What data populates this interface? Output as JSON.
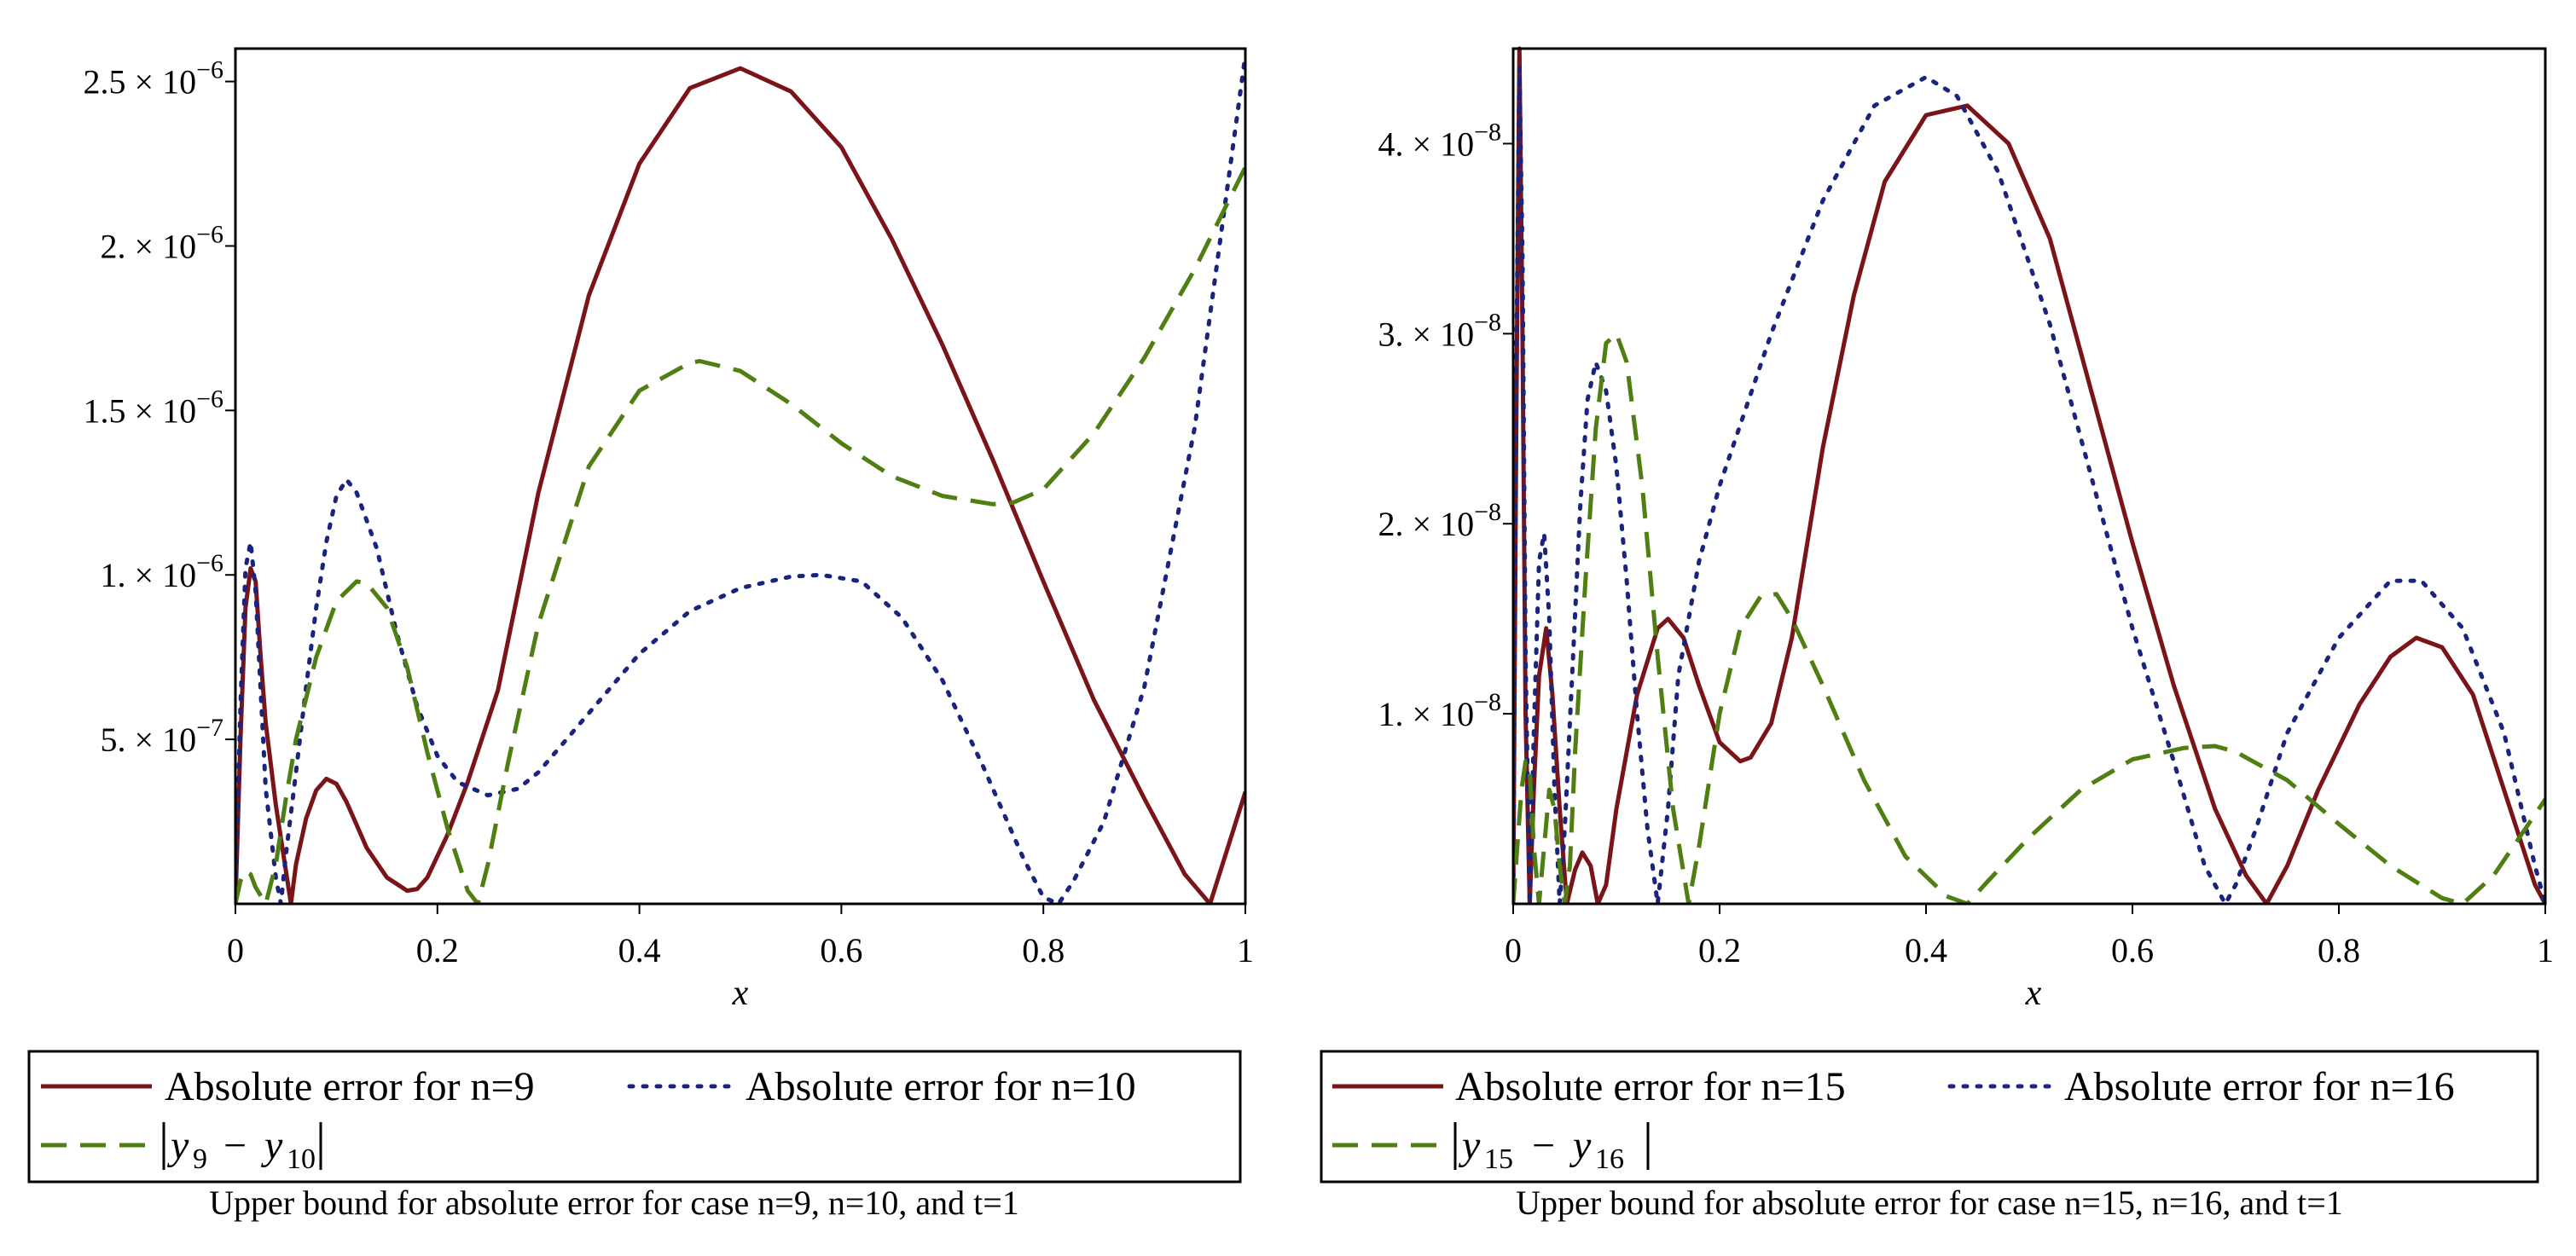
{
  "chart_data": [
    {
      "type": "line",
      "title": "",
      "xlabel": "x",
      "ylabel": "",
      "xlim": [
        0,
        1
      ],
      "ylim": [
        0,
        2.6e-06
      ],
      "x_ticks": [
        0,
        0.2,
        0.4,
        0.6,
        0.8,
        1
      ],
      "x_tick_labels": [
        "0",
        "0.2",
        "0.4",
        "0.6",
        "0.8",
        "1"
      ],
      "y_ticks": [
        5e-07,
        1e-06,
        1.5e-06,
        2e-06,
        2.5e-06
      ],
      "y_tick_mantissas": [
        "5.",
        "1.",
        "1.5",
        "2.",
        "2.5"
      ],
      "y_tick_exponents": [
        "-7",
        "-6",
        "-6",
        "-6",
        "-6"
      ],
      "series": [
        {
          "name": "Absolute error for n=9",
          "style": "solid",
          "color": "#7a1418",
          "x": [
            0,
            0.005,
            0.01,
            0.015,
            0.02,
            0.025,
            0.03,
            0.04,
            0.05,
            0.055,
            0.06,
            0.07,
            0.08,
            0.09,
            0.1,
            0.11,
            0.12,
            0.13,
            0.15,
            0.17,
            0.18,
            0.19,
            0.21,
            0.23,
            0.26,
            0.3,
            0.35,
            0.4,
            0.45,
            0.5,
            0.55,
            0.6,
            0.65,
            0.7,
            0.75,
            0.8,
            0.85,
            0.9,
            0.94,
            0.965,
            1
          ],
          "y": [
            0,
            5e-07,
            9e-07,
            1.02e-06,
            9.8e-07,
            7.5e-07,
            5.5e-07,
            3e-07,
            1e-07,
            0,
            1.2e-07,
            2.6e-07,
            3.45e-07,
            3.8e-07,
            3.65e-07,
            3.1e-07,
            2.4e-07,
            1.7e-07,
            8e-08,
            4e-08,
            4.5e-08,
            8e-08,
            2.1e-07,
            3.7e-07,
            6.5e-07,
            1.25e-06,
            1.85e-06,
            2.25e-06,
            2.48e-06,
            2.54e-06,
            2.47e-06,
            2.3e-06,
            2.02e-06,
            1.7e-06,
            1.35e-06,
            9.8e-07,
            6.2e-07,
            3.2e-07,
            9e-08,
            0,
            3.4e-07
          ]
        },
        {
          "name": "Absolute error for n=10",
          "style": "dotted",
          "color": "#1a237e",
          "x": [
            0,
            0.005,
            0.01,
            0.015,
            0.02,
            0.025,
            0.03,
            0.04,
            0.045,
            0.05,
            0.06,
            0.07,
            0.08,
            0.09,
            0.1,
            0.11,
            0.12,
            0.14,
            0.16,
            0.18,
            0.2,
            0.22,
            0.25,
            0.28,
            0.3,
            0.35,
            0.4,
            0.45,
            0.5,
            0.55,
            0.58,
            0.62,
            0.66,
            0.7,
            0.74,
            0.78,
            0.8,
            0.815,
            0.83,
            0.86,
            0.9,
            0.95,
            1
          ],
          "y": [
            0,
            6e-07,
            1.02e-06,
            1.1e-06,
            9.5e-07,
            6.5e-07,
            3.5e-07,
            8e-08,
            0,
            1.5e-07,
            4e-07,
            6.6e-07,
            9e-07,
            1.1e-06,
            1.24e-06,
            1.29e-06,
            1.25e-06,
            1.08e-06,
            8.2e-07,
            6e-07,
            4.5e-07,
            3.7e-07,
            3.3e-07,
            3.5e-07,
            4e-07,
            5.8e-07,
            7.6e-07,
            8.9e-07,
            9.6e-07,
            9.95e-07,
            1e-06,
            9.8e-07,
            8.7e-07,
            6.8e-07,
            4.2e-07,
            1.4e-07,
            2e-08,
            0,
            7e-08,
            2.5e-07,
            6.6e-07,
            1.45e-06,
            2.58e-06
          ]
        },
        {
          "name": "|y_9 - y_10|",
          "style": "dashed",
          "color": "#4f7f12",
          "x": [
            0,
            0.005,
            0.01,
            0.015,
            0.02,
            0.03,
            0.04,
            0.05,
            0.06,
            0.08,
            0.1,
            0.12,
            0.13,
            0.15,
            0.17,
            0.19,
            0.21,
            0.23,
            0.24,
            0.25,
            0.27,
            0.3,
            0.35,
            0.4,
            0.45,
            0.46,
            0.5,
            0.55,
            0.6,
            0.65,
            0.7,
            0.75,
            0.77,
            0.8,
            0.85,
            0.9,
            0.95,
            1
          ],
          "y": [
            0,
            7e-08,
            1e-07,
            9e-08,
            5e-08,
            0,
            1.2e-07,
            3.2e-07,
            5e-07,
            7.5e-07,
            9.2e-07,
            9.8e-07,
            9.75e-07,
            9e-07,
            7.2e-07,
            4.6e-07,
            2.3e-07,
            4e-08,
            0,
            1.2e-07,
            4.3e-07,
            8.5e-07,
            1.33e-06,
            1.56e-06,
            1.645e-06,
            1.65e-06,
            1.62e-06,
            1.52e-06,
            1.4e-06,
            1.3e-06,
            1.24e-06,
            1.215e-06,
            1.22e-06,
            1.26e-06,
            1.43e-06,
            1.66e-06,
            1.93e-06,
            2.24e-06
          ]
        }
      ],
      "legend": {
        "placement": "below",
        "entries": [
          "Absolute error for n=9",
          "Absolute error for n=10"
        ],
        "math_entry": {
          "base1": "y",
          "sub1": "9",
          "op": "−",
          "base2": "y",
          "sub2": "10"
        }
      },
      "caption": "Upper bound for absolute error for case n=9, n=10, and t=1"
    },
    {
      "type": "line",
      "title": "",
      "xlabel": "x",
      "ylabel": "",
      "xlim": [
        0,
        1
      ],
      "ylim": [
        0,
        4.5e-08
      ],
      "x_ticks": [
        0,
        0.2,
        0.4,
        0.6,
        0.8,
        1
      ],
      "x_tick_labels": [
        "0",
        "0.2",
        "0.4",
        "0.6",
        "0.8",
        "1"
      ],
      "y_ticks": [
        1e-08,
        2e-08,
        3e-08,
        4e-08
      ],
      "y_tick_mantissas": [
        "1.",
        "2.",
        "3.",
        "4."
      ],
      "y_tick_exponents": [
        "-8",
        "-8",
        "-8",
        "-8"
      ],
      "series": [
        {
          "name": "Absolute error for n=15",
          "style": "solid",
          "color": "#7a1418",
          "x": [
            0,
            0.003,
            0.006,
            0.009,
            0.012,
            0.016,
            0.02,
            0.025,
            0.032,
            0.038,
            0.045,
            0.052,
            0.06,
            0.067,
            0.075,
            0.082,
            0.09,
            0.1,
            0.12,
            0.14,
            0.15,
            0.165,
            0.18,
            0.2,
            0.22,
            0.23,
            0.25,
            0.27,
            0.3,
            0.33,
            0.36,
            0.4,
            0.44,
            0.48,
            0.52,
            0.56,
            0.6,
            0.64,
            0.68,
            0.71,
            0.73,
            0.75,
            0.78,
            0.82,
            0.85,
            0.875,
            0.9,
            0.93,
            0.96,
            0.99,
            1
          ],
          "y": [
            0,
            2.5e-08,
            4.5e-08,
            3e-08,
            1e-08,
            0,
            6e-09,
            1.2e-08,
            1.45e-08,
            1.1e-08,
            5e-09,
            0,
            1.8e-09,
            2.7e-09,
            2e-09,
            0,
            1e-09,
            5e-09,
            1.1e-08,
            1.45e-08,
            1.5e-08,
            1.4e-08,
            1.15e-08,
            8.5e-09,
            7.5e-09,
            7.7e-09,
            9.5e-09,
            1.4e-08,
            2.4e-08,
            3.2e-08,
            3.8e-08,
            4.15e-08,
            4.2e-08,
            4e-08,
            3.5e-08,
            2.7e-08,
            1.9e-08,
            1.15e-08,
            5e-09,
            1.5e-09,
            0,
            2e-09,
            6e-09,
            1.05e-08,
            1.3e-08,
            1.4e-08,
            1.35e-08,
            1.1e-08,
            6e-09,
            1e-09,
            0
          ]
        },
        {
          "name": "Absolute error for n=16",
          "style": "dotted",
          "color": "#1a237e",
          "x": [
            0,
            0.003,
            0.006,
            0.009,
            0.012,
            0.016,
            0.02,
            0.025,
            0.03,
            0.035,
            0.04,
            0.045,
            0.05,
            0.058,
            0.065,
            0.072,
            0.08,
            0.09,
            0.1,
            0.11,
            0.12,
            0.13,
            0.14,
            0.15,
            0.16,
            0.18,
            0.2,
            0.25,
            0.3,
            0.35,
            0.4,
            0.43,
            0.47,
            0.52,
            0.56,
            0.6,
            0.64,
            0.67,
            0.69,
            0.7,
            0.72,
            0.75,
            0.8,
            0.85,
            0.88,
            0.92,
            0.96,
            0.99,
            1
          ],
          "y": [
            0,
            2.8e-08,
            4.4e-08,
            3.4e-08,
            1.3e-08,
            0,
            9e-09,
            1.8e-08,
            1.95e-08,
            1.5e-08,
            6e-09,
            0,
            4e-09,
            1.3e-08,
            2.1e-08,
            2.65e-08,
            2.85e-08,
            2.7e-08,
            2.3e-08,
            1.7e-08,
            1e-08,
            4e-09,
            0,
            5e-09,
            1.2e-08,
            1.8e-08,
            2.2e-08,
            3e-08,
            3.7e-08,
            4.2e-08,
            4.35e-08,
            4.25e-08,
            3.85e-08,
            3.05e-08,
            2.25e-08,
            1.45e-08,
            7.5e-09,
            2e-09,
            0,
            1e-09,
            4e-09,
            9e-09,
            1.4e-08,
            1.7e-08,
            1.7e-08,
            1.45e-08,
            9e-09,
            2e-09,
            0
          ]
        },
        {
          "name": "|y_15 - y_16|",
          "style": "dashed",
          "color": "#4f7f12",
          "x": [
            0,
            0.004,
            0.008,
            0.012,
            0.016,
            0.02,
            0.025,
            0.03,
            0.035,
            0.04,
            0.045,
            0.05,
            0.055,
            0.06,
            0.07,
            0.08,
            0.09,
            0.1,
            0.11,
            0.125,
            0.14,
            0.155,
            0.17,
            0.18,
            0.2,
            0.22,
            0.24,
            0.255,
            0.27,
            0.3,
            0.34,
            0.38,
            0.42,
            0.44,
            0.46,
            0.5,
            0.55,
            0.6,
            0.65,
            0.68,
            0.7,
            0.75,
            0.8,
            0.85,
            0.9,
            0.92,
            0.95,
            1
          ],
          "y": [
            0,
            3e-09,
            6e-09,
            7.5e-09,
            7e-09,
            3e-09,
            0,
            3e-09,
            6e-09,
            5e-09,
            2e-09,
            0,
            2e-09,
            8e-09,
            1.7e-08,
            2.5e-08,
            2.95e-08,
            3e-08,
            2.85e-08,
            2.2e-08,
            1.3e-08,
            5e-09,
            0,
            3e-09,
            1e-08,
            1.45e-08,
            1.62e-08,
            1.63e-08,
            1.5e-08,
            1.15e-08,
            6.5e-09,
            2.5e-09,
            4e-10,
            0,
            1.2e-09,
            3.5e-09,
            6e-09,
            7.6e-09,
            8.2e-09,
            8.3e-09,
            8e-09,
            6.5e-09,
            4.2e-09,
            2e-09,
            3e-10,
            0,
            1.5e-09,
            5.5e-09
          ]
        }
      ],
      "legend": {
        "placement": "below",
        "entries": [
          "Absolute error for n=15",
          "Absolute error for n=16"
        ],
        "math_entry": {
          "base1": "y",
          "sub1": "15",
          "op": "−",
          "base2": "y",
          "sub2": "16"
        }
      },
      "caption": "Upper bound for absolute error for case n=15, n=16, and t=1"
    }
  ]
}
